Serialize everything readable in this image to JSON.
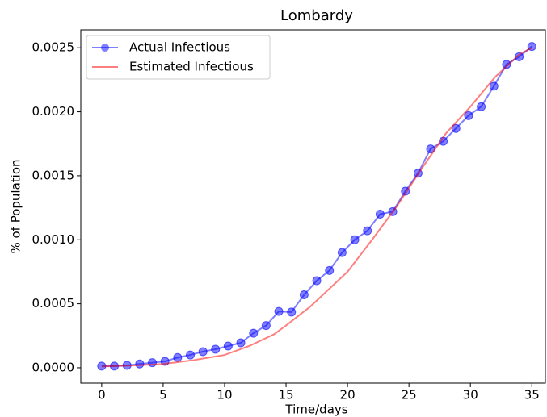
{
  "chart_data": {
    "type": "line",
    "title": "Lombardy",
    "xlabel": "Time/days",
    "ylabel": "% of Population",
    "xlim": [
      -1.7,
      36.1
    ],
    "ylim": [
      -0.00012,
      0.00264
    ],
    "xticks": [
      0,
      5,
      10,
      15,
      20,
      25,
      30,
      35
    ],
    "yticks": [
      {
        "value": 0,
        "label": "0.0000"
      },
      {
        "value": 0.0005,
        "label": "0.0005"
      },
      {
        "value": 0.001,
        "label": "0.0010"
      },
      {
        "value": 0.0015,
        "label": "0.0015"
      },
      {
        "value": 0.002,
        "label": "0.0020"
      },
      {
        "value": 0.0025,
        "label": "0.0025"
      }
    ],
    "legend": "upper left",
    "series": [
      {
        "name": "Actual Infectious",
        "color": "#0000ff",
        "marker": "o",
        "x": [
          0,
          1.03,
          2.06,
          3.09,
          4.12,
          5.15,
          6.18,
          7.21,
          8.24,
          9.26,
          10.29,
          11.32,
          12.35,
          13.38,
          14.41,
          15.44,
          16.47,
          17.5,
          18.53,
          19.56,
          20.59,
          21.62,
          22.65,
          23.68,
          24.71,
          25.74,
          26.76,
          27.79,
          28.82,
          29.85,
          30.88,
          31.91,
          32.94,
          33.97,
          35
        ],
        "values": [
          1.3e-05,
          1.3e-05,
          1.9e-05,
          3e-05,
          4e-05,
          5e-05,
          8e-05,
          0.0001,
          0.000126,
          0.000145,
          0.00017,
          0.000195,
          0.00027,
          0.00033,
          0.00044,
          0.000435,
          0.00057,
          0.00068,
          0.00076,
          0.0009,
          0.001,
          0.00107,
          0.0012,
          0.00122,
          0.00138,
          0.00152,
          0.00171,
          0.00177,
          0.00187,
          0.00197,
          0.00204,
          0.0022,
          0.00237,
          0.00243,
          0.00251
        ]
      },
      {
        "name": "Estimated Infectious",
        "color": "#ff0000",
        "marker": "none",
        "x": [
          0,
          2.5,
          5,
          7.5,
          10,
          12,
          14,
          15,
          17,
          20,
          22,
          24,
          26,
          28,
          30,
          32,
          34,
          35
        ],
        "values": [
          1e-05,
          1.8e-05,
          3e-05,
          6e-05,
          0.0001,
          0.00017,
          0.00026,
          0.00033,
          0.00048,
          0.00075,
          0.001,
          0.00126,
          0.00155,
          0.00183,
          0.00204,
          0.00227,
          0.00245,
          0.0025
        ]
      }
    ]
  }
}
